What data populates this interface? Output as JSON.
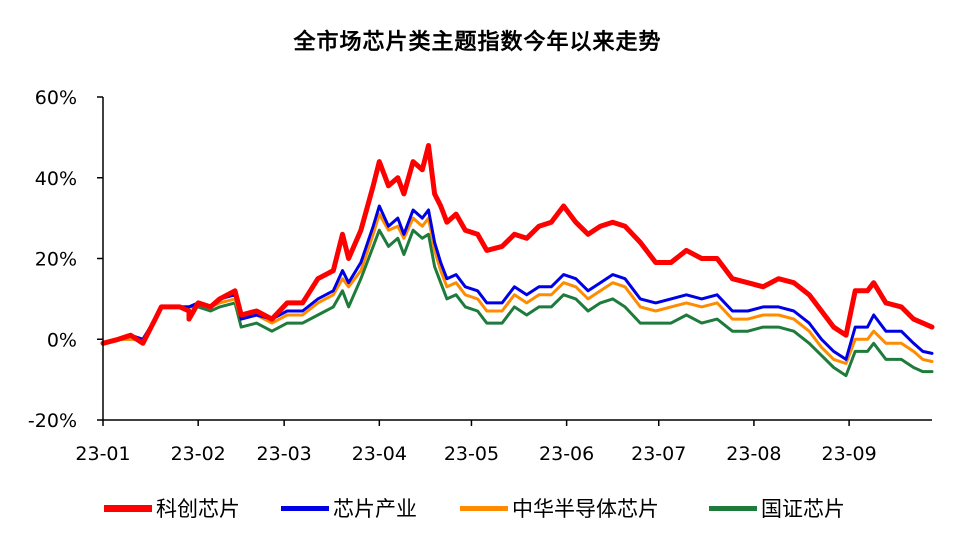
{
  "chart_data": {
    "type": "line",
    "title": "全市场芯片类主题指数今年以来走势",
    "xlabel": "",
    "ylabel": "",
    "ylim": [
      -0.2,
      0.6
    ],
    "yticks": [
      {
        "value": 0.6,
        "label": "60%"
      },
      {
        "value": 0.4,
        "label": "40%"
      },
      {
        "value": 0.2,
        "label": "20%"
      },
      {
        "value": 0.0,
        "label": "0%"
      },
      {
        "value": -0.2,
        "label": "-20%"
      }
    ],
    "xlim": [
      0,
      270
    ],
    "xticks": [
      {
        "value": 0,
        "label": "23-01"
      },
      {
        "value": 31,
        "label": "23-02"
      },
      {
        "value": 59,
        "label": "23-03"
      },
      {
        "value": 90,
        "label": "23-04"
      },
      {
        "value": 120,
        "label": "23-05"
      },
      {
        "value": 151,
        "label": "23-06"
      },
      {
        "value": 181,
        "label": "23-07"
      },
      {
        "value": 212,
        "label": "23-08"
      },
      {
        "value": 243,
        "label": "23-09"
      }
    ],
    "legend_position": "bottom",
    "grid": false,
    "series": [
      {
        "name": "科创芯片",
        "color": "#ff0000",
        "points": [
          [
            0,
            -0.01
          ],
          [
            5,
            0.0
          ],
          [
            9,
            0.01
          ],
          [
            13,
            -0.01
          ],
          [
            17,
            0.05
          ],
          [
            19,
            0.08
          ],
          [
            25,
            0.08
          ],
          [
            28,
            0.07
          ],
          [
            28,
            0.05
          ],
          [
            31,
            0.09
          ],
          [
            35,
            0.08
          ],
          [
            38,
            0.1
          ],
          [
            43,
            0.12
          ],
          [
            45,
            0.06
          ],
          [
            50,
            0.07
          ],
          [
            55,
            0.05
          ],
          [
            60,
            0.09
          ],
          [
            65,
            0.09
          ],
          [
            70,
            0.15
          ],
          [
            75,
            0.17
          ],
          [
            78,
            0.26
          ],
          [
            80,
            0.2
          ],
          [
            84,
            0.27
          ],
          [
            88,
            0.38
          ],
          [
            90,
            0.44
          ],
          [
            93,
            0.38
          ],
          [
            96,
            0.4
          ],
          [
            98,
            0.36
          ],
          [
            101,
            0.44
          ],
          [
            104,
            0.42
          ],
          [
            106,
            0.48
          ],
          [
            108,
            0.36
          ],
          [
            110,
            0.33
          ],
          [
            112,
            0.29
          ],
          [
            115,
            0.31
          ],
          [
            118,
            0.27
          ],
          [
            122,
            0.26
          ],
          [
            125,
            0.22
          ],
          [
            130,
            0.23
          ],
          [
            134,
            0.26
          ],
          [
            138,
            0.25
          ],
          [
            142,
            0.28
          ],
          [
            146,
            0.29
          ],
          [
            150,
            0.33
          ],
          [
            154,
            0.29
          ],
          [
            158,
            0.26
          ],
          [
            162,
            0.28
          ],
          [
            166,
            0.29
          ],
          [
            170,
            0.28
          ],
          [
            175,
            0.24
          ],
          [
            180,
            0.19
          ],
          [
            185,
            0.19
          ],
          [
            190,
            0.22
          ],
          [
            195,
            0.2
          ],
          [
            200,
            0.2
          ],
          [
            205,
            0.15
          ],
          [
            210,
            0.14
          ],
          [
            215,
            0.13
          ],
          [
            220,
            0.15
          ],
          [
            225,
            0.14
          ],
          [
            230,
            0.11
          ],
          [
            234,
            0.07
          ],
          [
            238,
            0.03
          ],
          [
            242,
            0.01
          ],
          [
            245,
            0.12
          ],
          [
            249,
            0.12
          ],
          [
            251,
            0.14
          ],
          [
            255,
            0.09
          ],
          [
            260,
            0.08
          ],
          [
            264,
            0.05
          ],
          [
            267,
            0.04
          ],
          [
            270,
            0.03
          ]
        ]
      },
      {
        "name": "芯片产业",
        "color": "#0000e6",
        "points": [
          [
            0,
            -0.01
          ],
          [
            5,
            0.0
          ],
          [
            9,
            0.01
          ],
          [
            13,
            0.0
          ],
          [
            17,
            0.05
          ],
          [
            19,
            0.08
          ],
          [
            25,
            0.08
          ],
          [
            28,
            0.08
          ],
          [
            31,
            0.09
          ],
          [
            35,
            0.08
          ],
          [
            38,
            0.1
          ],
          [
            43,
            0.11
          ],
          [
            45,
            0.05
          ],
          [
            50,
            0.06
          ],
          [
            55,
            0.05
          ],
          [
            60,
            0.07
          ],
          [
            65,
            0.07
          ],
          [
            70,
            0.1
          ],
          [
            75,
            0.12
          ],
          [
            78,
            0.17
          ],
          [
            80,
            0.14
          ],
          [
            84,
            0.19
          ],
          [
            88,
            0.28
          ],
          [
            90,
            0.33
          ],
          [
            93,
            0.28
          ],
          [
            96,
            0.3
          ],
          [
            98,
            0.26
          ],
          [
            101,
            0.32
          ],
          [
            104,
            0.3
          ],
          [
            106,
            0.32
          ],
          [
            108,
            0.24
          ],
          [
            110,
            0.19
          ],
          [
            112,
            0.15
          ],
          [
            115,
            0.16
          ],
          [
            118,
            0.13
          ],
          [
            122,
            0.12
          ],
          [
            125,
            0.09
          ],
          [
            130,
            0.09
          ],
          [
            134,
            0.13
          ],
          [
            138,
            0.11
          ],
          [
            142,
            0.13
          ],
          [
            146,
            0.13
          ],
          [
            150,
            0.16
          ],
          [
            154,
            0.15
          ],
          [
            158,
            0.12
          ],
          [
            162,
            0.14
          ],
          [
            166,
            0.16
          ],
          [
            170,
            0.15
          ],
          [
            175,
            0.1
          ],
          [
            180,
            0.09
          ],
          [
            185,
            0.1
          ],
          [
            190,
            0.11
          ],
          [
            195,
            0.1
          ],
          [
            200,
            0.11
          ],
          [
            205,
            0.07
          ],
          [
            210,
            0.07
          ],
          [
            215,
            0.08
          ],
          [
            220,
            0.08
          ],
          [
            225,
            0.07
          ],
          [
            230,
            0.04
          ],
          [
            234,
            0.0
          ],
          [
            238,
            -0.03
          ],
          [
            242,
            -0.05
          ],
          [
            245,
            0.03
          ],
          [
            249,
            0.03
          ],
          [
            251,
            0.06
          ],
          [
            255,
            0.02
          ],
          [
            260,
            0.02
          ],
          [
            264,
            -0.01
          ],
          [
            267,
            -0.03
          ],
          [
            270,
            -0.035
          ]
        ]
      },
      {
        "name": "中华半导体芯片",
        "color": "#ff8c00",
        "points": [
          [
            0,
            -0.01
          ],
          [
            5,
            0.0
          ],
          [
            9,
            0.0
          ],
          [
            13,
            0.0
          ],
          [
            17,
            0.05
          ],
          [
            19,
            0.08
          ],
          [
            25,
            0.08
          ],
          [
            28,
            0.08
          ],
          [
            31,
            0.09
          ],
          [
            35,
            0.08
          ],
          [
            38,
            0.09
          ],
          [
            43,
            0.1
          ],
          [
            45,
            0.05
          ],
          [
            50,
            0.06
          ],
          [
            55,
            0.04
          ],
          [
            60,
            0.06
          ],
          [
            65,
            0.06
          ],
          [
            70,
            0.09
          ],
          [
            75,
            0.11
          ],
          [
            78,
            0.15
          ],
          [
            80,
            0.13
          ],
          [
            84,
            0.17
          ],
          [
            88,
            0.26
          ],
          [
            90,
            0.31
          ],
          [
            93,
            0.27
          ],
          [
            96,
            0.28
          ],
          [
            98,
            0.25
          ],
          [
            101,
            0.3
          ],
          [
            104,
            0.28
          ],
          [
            106,
            0.3
          ],
          [
            108,
            0.22
          ],
          [
            110,
            0.17
          ],
          [
            112,
            0.13
          ],
          [
            115,
            0.14
          ],
          [
            118,
            0.11
          ],
          [
            122,
            0.1
          ],
          [
            125,
            0.07
          ],
          [
            130,
            0.07
          ],
          [
            134,
            0.11
          ],
          [
            138,
            0.09
          ],
          [
            142,
            0.11
          ],
          [
            146,
            0.11
          ],
          [
            150,
            0.14
          ],
          [
            154,
            0.13
          ],
          [
            158,
            0.1
          ],
          [
            162,
            0.12
          ],
          [
            166,
            0.14
          ],
          [
            170,
            0.13
          ],
          [
            175,
            0.08
          ],
          [
            180,
            0.07
          ],
          [
            185,
            0.08
          ],
          [
            190,
            0.09
          ],
          [
            195,
            0.08
          ],
          [
            200,
            0.09
          ],
          [
            205,
            0.05
          ],
          [
            210,
            0.05
          ],
          [
            215,
            0.06
          ],
          [
            220,
            0.06
          ],
          [
            225,
            0.05
          ],
          [
            230,
            0.02
          ],
          [
            234,
            -0.02
          ],
          [
            238,
            -0.05
          ],
          [
            242,
            -0.06
          ],
          [
            245,
            0.0
          ],
          [
            249,
            0.0
          ],
          [
            251,
            0.02
          ],
          [
            255,
            -0.01
          ],
          [
            260,
            -0.01
          ],
          [
            264,
            -0.03
          ],
          [
            267,
            -0.05
          ],
          [
            270,
            -0.055
          ]
        ]
      },
      {
        "name": "国证芯片",
        "color": "#1e7b3c",
        "points": [
          [
            0,
            -0.01
          ],
          [
            5,
            0.0
          ],
          [
            9,
            0.0
          ],
          [
            13,
            0.0
          ],
          [
            17,
            0.05
          ],
          [
            19,
            0.08
          ],
          [
            25,
            0.08
          ],
          [
            28,
            0.08
          ],
          [
            31,
            0.08
          ],
          [
            35,
            0.07
          ],
          [
            38,
            0.08
          ],
          [
            43,
            0.09
          ],
          [
            45,
            0.03
          ],
          [
            50,
            0.04
          ],
          [
            55,
            0.02
          ],
          [
            60,
            0.04
          ],
          [
            65,
            0.04
          ],
          [
            70,
            0.06
          ],
          [
            75,
            0.08
          ],
          [
            78,
            0.12
          ],
          [
            80,
            0.08
          ],
          [
            84,
            0.15
          ],
          [
            88,
            0.23
          ],
          [
            90,
            0.27
          ],
          [
            93,
            0.23
          ],
          [
            96,
            0.25
          ],
          [
            98,
            0.21
          ],
          [
            101,
            0.27
          ],
          [
            104,
            0.25
          ],
          [
            106,
            0.26
          ],
          [
            108,
            0.18
          ],
          [
            110,
            0.14
          ],
          [
            112,
            0.1
          ],
          [
            115,
            0.11
          ],
          [
            118,
            0.08
          ],
          [
            122,
            0.07
          ],
          [
            125,
            0.04
          ],
          [
            130,
            0.04
          ],
          [
            134,
            0.08
          ],
          [
            138,
            0.06
          ],
          [
            142,
            0.08
          ],
          [
            146,
            0.08
          ],
          [
            150,
            0.11
          ],
          [
            154,
            0.1
          ],
          [
            158,
            0.07
          ],
          [
            162,
            0.09
          ],
          [
            166,
            0.1
          ],
          [
            170,
            0.08
          ],
          [
            175,
            0.04
          ],
          [
            180,
            0.04
          ],
          [
            185,
            0.04
          ],
          [
            190,
            0.06
          ],
          [
            195,
            0.04
          ],
          [
            200,
            0.05
          ],
          [
            205,
            0.02
          ],
          [
            210,
            0.02
          ],
          [
            215,
            0.03
          ],
          [
            220,
            0.03
          ],
          [
            225,
            0.02
          ],
          [
            230,
            -0.01
          ],
          [
            234,
            -0.04
          ],
          [
            238,
            -0.07
          ],
          [
            242,
            -0.09
          ],
          [
            245,
            -0.03
          ],
          [
            249,
            -0.03
          ],
          [
            251,
            -0.01
          ],
          [
            255,
            -0.05
          ],
          [
            260,
            -0.05
          ],
          [
            264,
            -0.07
          ],
          [
            267,
            -0.08
          ],
          [
            270,
            -0.08
          ]
        ]
      }
    ]
  }
}
